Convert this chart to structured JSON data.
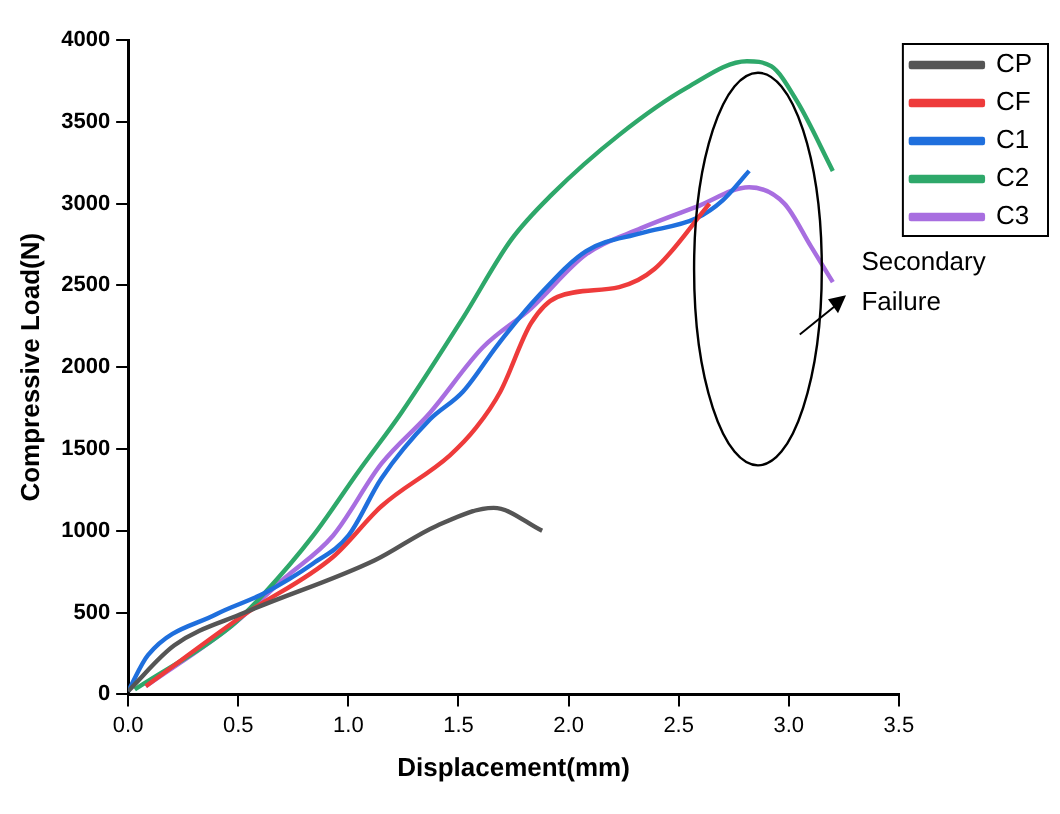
{
  "chart_data": {
    "type": "line",
    "xlabel": "Displacement(mm)",
    "ylabel": "Compressive Load(N)",
    "xlim": [
      0,
      3.5
    ],
    "xticks": [
      {
        "value": 0,
        "label": "0.0"
      },
      {
        "value": 0.5,
        "label": "0.5"
      },
      {
        "value": 1,
        "label": "1.0"
      },
      {
        "value": 1.5,
        "label": "1.5"
      },
      {
        "value": 2,
        "label": "2.0"
      },
      {
        "value": 2.5,
        "label": "2.5"
      },
      {
        "value": 3,
        "label": "3.0"
      },
      {
        "value": 3.5,
        "label": "3.5"
      }
    ],
    "ylim": [
      0,
      4000
    ],
    "yticks": [
      0,
      500,
      1000,
      1500,
      2000,
      2500,
      3000,
      3500,
      4000
    ],
    "grid": false,
    "legend": "top right",
    "marker": "none",
    "line_style": "solid",
    "annotations": [
      "Secondary Failure"
    ],
    "series": [
      {
        "name": "CP",
        "color": "#555555",
        "x": [
          0,
          0.21,
          0.53,
          1.12,
          1.4,
          1.66,
          1.88
        ],
        "values": [
          20,
          300,
          500,
          820,
          1030,
          1140,
          1000
        ]
      },
      {
        "name": "CF",
        "color": "#ee3b3b",
        "x": [
          0.08,
          0.53,
          0.93,
          1.15,
          1.46,
          1.58,
          1.69,
          1.83,
          1.95,
          2.23,
          2.39,
          2.64
        ],
        "values": [
          50,
          490,
          840,
          1150,
          1460,
          1630,
          1850,
          2270,
          2430,
          2490,
          2600,
          3000
        ]
      },
      {
        "name": "C1",
        "color": "#1f6fdd",
        "x": [
          0,
          0.09,
          0.4,
          0.62,
          0.84,
          1,
          1.15,
          1.37,
          1.52,
          1.68,
          1.86,
          2.08,
          2.33,
          2.58,
          2.7,
          2.82
        ],
        "values": [
          20,
          240,
          490,
          620,
          800,
          970,
          1320,
          1680,
          1850,
          2140,
          2430,
          2710,
          2820,
          2910,
          3020,
          3200
        ]
      },
      {
        "name": "C2",
        "color": "#2ea86a",
        "x": [
          0.03,
          0.47,
          0.62,
          0.84,
          1.05,
          1.24,
          1.52,
          1.74,
          1.92,
          2.23,
          2.54,
          2.81,
          2.92,
          3.04,
          3.2
        ],
        "values": [
          30,
          420,
          620,
          970,
          1370,
          1720,
          2300,
          2780,
          3050,
          3420,
          3710,
          3870,
          3840,
          3620,
          3200
        ]
      },
      {
        "name": "C3",
        "color": "#a86ee0",
        "x": [
          0.08,
          0.47,
          0.71,
          0.93,
          1.15,
          1.37,
          1.61,
          1.83,
          2.08,
          2.33,
          2.58,
          2.82,
          2.98,
          3.1,
          3.2
        ],
        "values": [
          50,
          420,
          710,
          970,
          1410,
          1720,
          2120,
          2360,
          2690,
          2850,
          2980,
          3100,
          3000,
          2740,
          2520
        ]
      }
    ]
  }
}
